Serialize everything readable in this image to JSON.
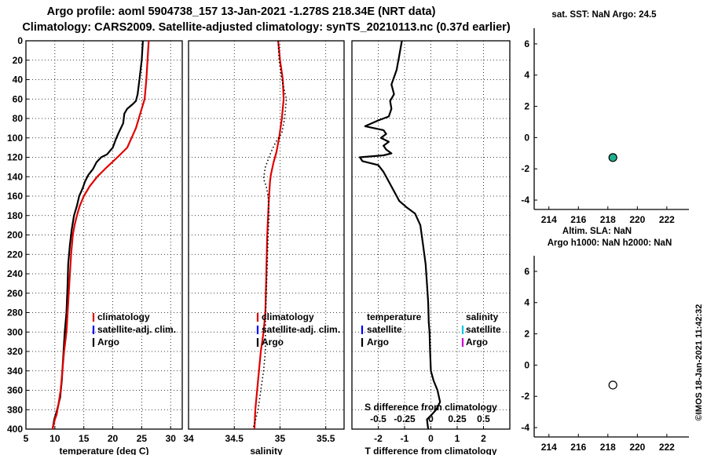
{
  "header": {
    "title_line1": "Argo profile: aoml 5904738_157 13-Jan-2021 -1.278S 218.34E (NRT data)",
    "title_line2": "Climatology: CARS2009. Satellite-adjusted climatology: synTS_20210113.nc (0.37d earlier)"
  },
  "side_text": "©IMOS 18-Jan-2021 11:42:32",
  "colors": {
    "climatology": "#e00000",
    "satellite_adj": "#0000ff",
    "argo": "#000000",
    "salinity_satellite": "#00c8e0",
    "salinity_argo": "#d000d0",
    "sst_marker": "#20b090"
  },
  "chart_data": [
    {
      "type": "line",
      "id": "temperature",
      "xlabel": "temperature (deg C)",
      "ylabel": "",
      "xlim": [
        5,
        32
      ],
      "ylim": [
        400,
        0
      ],
      "xticks": [
        5,
        10,
        15,
        20,
        25,
        30
      ],
      "xtick_labels": [
        "5",
        "10",
        "15",
        "20",
        "25",
        "30"
      ],
      "yticks": [
        0,
        20,
        40,
        60,
        80,
        100,
        120,
        140,
        160,
        180,
        200,
        220,
        240,
        260,
        280,
        300,
        320,
        340,
        360,
        380,
        400
      ],
      "ytick_labels": [
        "0",
        "20",
        "40",
        "60",
        "80",
        "100",
        "120",
        "140",
        "160",
        "180",
        "200",
        "220",
        "240",
        "260",
        "280",
        "300",
        "320",
        "340",
        "360",
        "380",
        "400"
      ],
      "grid": true,
      "legend": [
        "climatology",
        "satellite-adj. clim.",
        "Argo"
      ],
      "legend_position": "lower-right",
      "series": [
        {
          "name": "climatology",
          "x": [
            26.2,
            26.0,
            25.8,
            25.5,
            25.0,
            24.0,
            22.5,
            20.8,
            19.0,
            17.3,
            16.0,
            15.0,
            14.3,
            13.8,
            13.4,
            13.1,
            12.8,
            12.6,
            12.4,
            12.2,
            12.0,
            11.6,
            11.3,
            11.0,
            10.6,
            10.3,
            10.0,
            9.8,
            9.6
          ],
          "depth": [
            0,
            20,
            40,
            60,
            70,
            90,
            110,
            120,
            130,
            140,
            150,
            160,
            170,
            180,
            190,
            200,
            220,
            240,
            260,
            280,
            300,
            320,
            340,
            360,
            375,
            385,
            390,
            395,
            400
          ]
        },
        {
          "name": "Argo",
          "x": [
            25.2,
            25.0,
            24.6,
            24.3,
            24.0,
            23.5,
            22.5,
            22.0,
            21.8,
            21.0,
            20.5,
            20.0,
            19.0,
            18.0,
            17.2,
            16.6,
            15.8,
            15.2,
            14.8,
            14.2,
            13.8,
            13.3,
            12.9,
            12.6,
            12.3,
            12.2,
            12.0,
            11.7,
            11.5,
            11.3,
            11.2,
            11.0,
            10.9,
            10.8,
            10.6,
            10.3,
            9.9,
            9.6
          ],
          "depth": [
            0,
            20,
            40,
            55,
            62,
            65,
            70,
            75,
            85,
            95,
            102,
            110,
            117,
            120,
            125,
            132,
            138,
            145,
            152,
            160,
            170,
            180,
            195,
            210,
            230,
            250,
            280,
            300,
            320,
            340,
            350,
            362,
            368,
            370,
            375,
            382,
            390,
            400
          ]
        }
      ]
    },
    {
      "type": "line",
      "id": "salinity",
      "xlabel": "salinity",
      "xlim": [
        34,
        35.7
      ],
      "ylim": [
        400,
        0
      ],
      "xticks": [
        34,
        34.5,
        35,
        35.5
      ],
      "xtick_labels": [
        "34",
        "34.5",
        "35",
        "35.5"
      ],
      "grid": true,
      "legend": [
        "climatology",
        "satellite-adj. clim.",
        "Argo"
      ],
      "legend_position": "lower-right",
      "series": [
        {
          "name": "climatology",
          "x": [
            34.98,
            35.0,
            35.03,
            35.04,
            35.02,
            34.99,
            34.96,
            34.93,
            34.9,
            34.89,
            34.88,
            34.87,
            34.86,
            34.85,
            34.84,
            34.82,
            34.79,
            34.76,
            34.73,
            34.72
          ],
          "depth": [
            0,
            20,
            40,
            60,
            80,
            100,
            115,
            125,
            138,
            145,
            160,
            180,
            200,
            240,
            280,
            300,
            320,
            350,
            380,
            400
          ]
        },
        {
          "name": "Argo",
          "x": [
            34.98,
            34.99,
            35.02,
            35.07,
            35.05,
            35.02,
            34.95,
            34.9,
            34.84,
            34.82,
            34.85,
            34.87,
            34.88,
            34.87,
            34.86,
            34.85,
            34.84,
            34.84,
            34.82,
            34.79,
            34.76,
            34.72,
            34.7
          ],
          "depth": [
            0,
            20,
            40,
            60,
            80,
            95,
            105,
            115,
            130,
            142,
            150,
            160,
            180,
            200,
            230,
            260,
            290,
            320,
            340,
            360,
            380,
            395,
            400
          ]
        }
      ]
    },
    {
      "type": "line",
      "id": "difference",
      "xlabel": "T difference from climatology",
      "secondary_xlabel": "S difference from climatology",
      "xlim": [
        -3,
        3
      ],
      "ylim": [
        400,
        0
      ],
      "xticks": [
        -2,
        -1,
        0,
        1,
        2
      ],
      "xtick_labels": [
        "-2",
        "-1",
        "0",
        "1",
        "2"
      ],
      "secondary_xticks": [
        -0.5,
        -0.25,
        0,
        0.25,
        0.5
      ],
      "secondary_xtick_labels": [
        "-0.5",
        "-0.25",
        "0",
        "0.25",
        "0.5"
      ],
      "grid": true,
      "legend_temperature_title": "temperature",
      "legend_salinity_title": "salinity",
      "legend": [
        "satellite",
        "Argo"
      ],
      "legend_position": "lower-center",
      "series": [
        {
          "name": "T difference (Argo - climatology)",
          "x": [
            -1.1,
            -1.2,
            -1.3,
            -1.5,
            -1.4,
            -1.55,
            -1.5,
            -1.6,
            -2.0,
            -2.5,
            -1.8,
            -1.7,
            -1.9,
            -1.6,
            -1.8,
            -1.7,
            -1.5,
            -1.8,
            -2.7,
            -2.6,
            -2.0,
            -1.8,
            -1.6,
            -1.4,
            -1.2,
            -0.9,
            -0.6,
            -0.4,
            -0.3,
            -0.2,
            -0.15,
            -0.1,
            -0.08,
            -0.05,
            -0.03,
            0.0,
            0.1,
            0.25,
            0.35,
            0.2,
            0.0,
            -0.15,
            -0.1
          ],
          "depth": [
            0,
            15,
            30,
            45,
            55,
            62,
            70,
            78,
            82,
            88,
            92,
            96,
            100,
            104,
            108,
            112,
            116,
            118,
            120,
            124,
            128,
            135,
            145,
            155,
            165,
            172,
            178,
            190,
            210,
            230,
            250,
            270,
            290,
            300,
            320,
            340,
            350,
            360,
            372,
            380,
            386,
            390,
            400
          ]
        }
      ]
    },
    {
      "type": "scatter",
      "id": "sst",
      "title": "sat. SST: NaN Argo: 24.5",
      "xlim": [
        213,
        223.5
      ],
      "ylim": [
        -4.6,
        7
      ],
      "xticks": [
        214,
        216,
        218,
        220,
        222
      ],
      "xtick_labels": [
        "214",
        "216",
        "218",
        "220",
        "222"
      ],
      "yticks": [
        -4,
        -2,
        0,
        2,
        4,
        6
      ],
      "ytick_labels": [
        "-4",
        "-2",
        "0",
        "2",
        "4",
        "6"
      ],
      "points": [
        {
          "x": 218.34,
          "y": -1.278,
          "filled": true
        }
      ]
    },
    {
      "type": "scatter",
      "id": "sla",
      "title": "Altim. SLA: NaN",
      "subtitle": "Argo h1000: NaN h2000: NaN",
      "xlim": [
        213,
        223.5
      ],
      "ylim": [
        -4.6,
        7
      ],
      "xticks": [
        214,
        216,
        218,
        220,
        222
      ],
      "xtick_labels": [
        "214",
        "216",
        "218",
        "220",
        "222"
      ],
      "yticks": [
        -4,
        -2,
        0,
        2,
        4,
        6
      ],
      "ytick_labels": [
        "-4",
        "-2",
        "0",
        "2",
        "4",
        "6"
      ],
      "points": [
        {
          "x": 218.34,
          "y": -1.278,
          "filled": false
        }
      ]
    }
  ]
}
